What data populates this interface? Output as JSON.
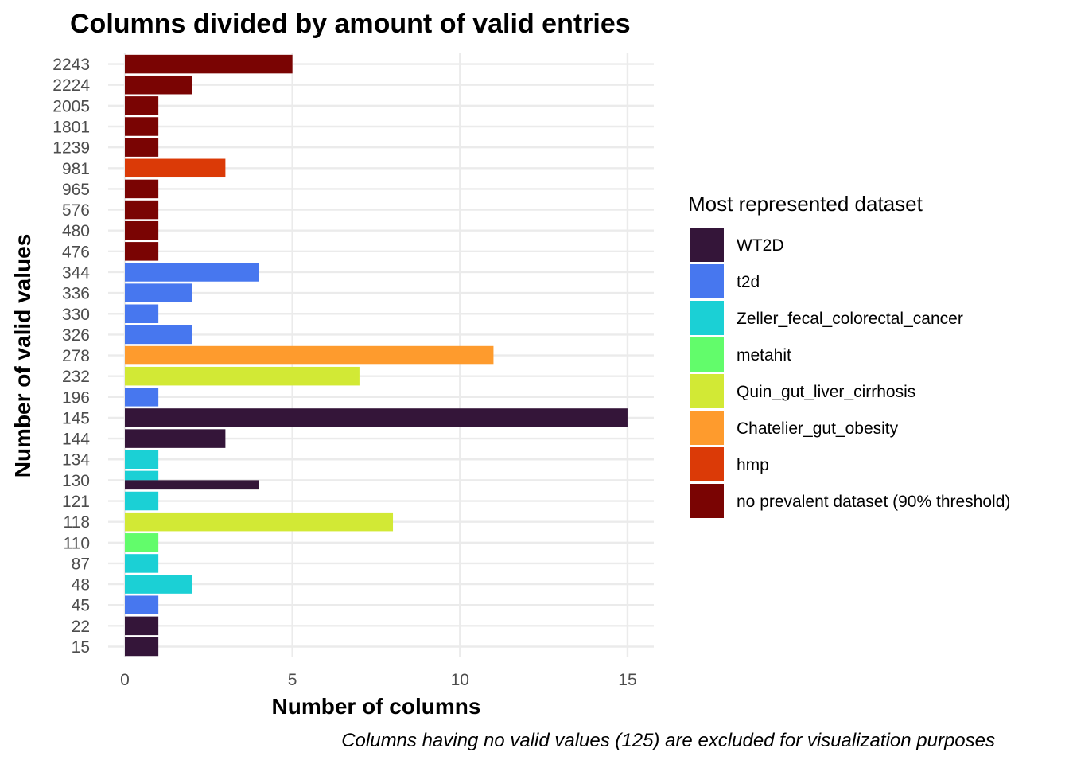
{
  "chart_data": {
    "type": "bar",
    "orientation": "horizontal",
    "title": "Columns divided by amount of valid entries",
    "xlabel": "Number of columns",
    "ylabel": "Number of valid values",
    "caption": "Columns having no valid values (125) are excluded for visualization purposes",
    "xlim": [
      0,
      15.8
    ],
    "xticks": [
      0,
      5,
      10,
      15
    ],
    "grid": true,
    "legend": {
      "title": "Most represented dataset",
      "position": "right"
    },
    "series": [
      {
        "name": "WT2D",
        "color": "#341539"
      },
      {
        "name": "t2d",
        "color": "#4777ef"
      },
      {
        "name": "Zeller_fecal_colorectal_cancer",
        "color": "#1bd0d5"
      },
      {
        "name": "metahit",
        "color": "#62fc6b"
      },
      {
        "name": "Quin_gut_liver_cirrhosis",
        "color": "#d2e935"
      },
      {
        "name": "Chatelier_gut_obesity",
        "color": "#fe9b2d"
      },
      {
        "name": "hmp",
        "color": "#db3a07"
      },
      {
        "name": "no prevalent dataset (90% threshold)",
        "color": "#7a0403"
      }
    ],
    "categories": [
      "15",
      "22",
      "45",
      "48",
      "87",
      "110",
      "118",
      "121",
      "130",
      "134",
      "144",
      "145",
      "196",
      "232",
      "278",
      "326",
      "330",
      "336",
      "344",
      "476",
      "480",
      "576",
      "965",
      "981",
      "1239",
      "1801",
      "2005",
      "2224",
      "2243"
    ],
    "bars": [
      {
        "category": "15",
        "value": 1,
        "series": "WT2D"
      },
      {
        "category": "22",
        "value": 1,
        "series": "WT2D"
      },
      {
        "category": "45",
        "value": 1,
        "series": "t2d"
      },
      {
        "category": "48",
        "value": 2,
        "series": "Zeller_fecal_colorectal_cancer"
      },
      {
        "category": "87",
        "value": 1,
        "series": "Zeller_fecal_colorectal_cancer"
      },
      {
        "category": "110",
        "value": 1,
        "series": "metahit"
      },
      {
        "category": "118",
        "value": 8,
        "series": "Quin_gut_liver_cirrhosis"
      },
      {
        "category": "121",
        "value": 1,
        "series": "Zeller_fecal_colorectal_cancer"
      },
      {
        "category": "130",
        "value": 1,
        "series": "Zeller_fecal_colorectal_cancer",
        "dodge": "upper"
      },
      {
        "category": "130",
        "value": 4,
        "series": "WT2D",
        "dodge": "lower"
      },
      {
        "category": "134",
        "value": 1,
        "series": "Zeller_fecal_colorectal_cancer"
      },
      {
        "category": "144",
        "value": 3,
        "series": "WT2D"
      },
      {
        "category": "145",
        "value": 15,
        "series": "WT2D"
      },
      {
        "category": "196",
        "value": 1,
        "series": "t2d"
      },
      {
        "category": "232",
        "value": 7,
        "series": "Quin_gut_liver_cirrhosis"
      },
      {
        "category": "278",
        "value": 11,
        "series": "Chatelier_gut_obesity"
      },
      {
        "category": "326",
        "value": 2,
        "series": "t2d"
      },
      {
        "category": "330",
        "value": 1,
        "series": "t2d"
      },
      {
        "category": "336",
        "value": 2,
        "series": "t2d"
      },
      {
        "category": "344",
        "value": 4,
        "series": "t2d"
      },
      {
        "category": "476",
        "value": 1,
        "series": "no prevalent dataset (90% threshold)"
      },
      {
        "category": "480",
        "value": 1,
        "series": "no prevalent dataset (90% threshold)"
      },
      {
        "category": "576",
        "value": 1,
        "series": "no prevalent dataset (90% threshold)"
      },
      {
        "category": "965",
        "value": 1,
        "series": "no prevalent dataset (90% threshold)"
      },
      {
        "category": "981",
        "value": 3,
        "series": "hmp"
      },
      {
        "category": "1239",
        "value": 1,
        "series": "no prevalent dataset (90% threshold)"
      },
      {
        "category": "1801",
        "value": 1,
        "series": "no prevalent dataset (90% threshold)"
      },
      {
        "category": "2005",
        "value": 1,
        "series": "no prevalent dataset (90% threshold)"
      },
      {
        "category": "2224",
        "value": 2,
        "series": "no prevalent dataset (90% threshold)"
      },
      {
        "category": "2243",
        "value": 5,
        "series": "no prevalent dataset (90% threshold)"
      }
    ]
  }
}
